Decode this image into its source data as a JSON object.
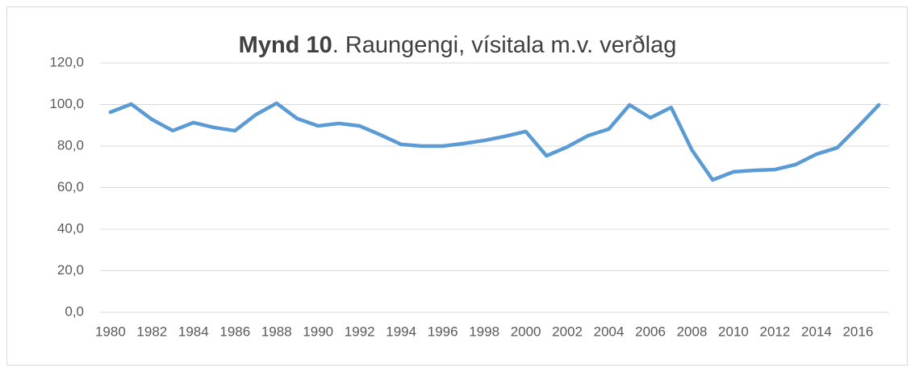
{
  "chart_data": {
    "type": "line",
    "title_bold": "Mynd 10",
    "title": ". Raungengi, vísitala m.v. verðlag",
    "categories": [
      "1980",
      null,
      "1982",
      null,
      "1984",
      null,
      "1986",
      null,
      "1988",
      null,
      "1990",
      null,
      "1992",
      null,
      "1994",
      null,
      "1996",
      null,
      "1998",
      null,
      "2000",
      null,
      "2002",
      null,
      "2004",
      null,
      "2006",
      null,
      "2008",
      null,
      "2010",
      null,
      "2012",
      null,
      "2014",
      null,
      "2016",
      null
    ],
    "series": [
      {
        "color": "#5b9bd5",
        "values": [
          96.3,
          100.2,
          92.8,
          87.4,
          91.3,
          88.9,
          87.4,
          95.1,
          100.6,
          93.2,
          89.7,
          90.9,
          89.7,
          85.4,
          80.8,
          80.0,
          80.0,
          81.2,
          82.7,
          84.7,
          87.0,
          75.3,
          79.6,
          85.0,
          88.2,
          99.8,
          93.6,
          98.6,
          78.1,
          63.7,
          67.6,
          68.3,
          68.7,
          71.1,
          76.1,
          79.2,
          89.3,
          99.8
        ]
      }
    ],
    "ylim": [
      0,
      120
    ],
    "yticks": [
      {
        "value": 0,
        "label": "0,0"
      },
      {
        "value": 20,
        "label": "20,0"
      },
      {
        "value": 40,
        "label": "40,0"
      },
      {
        "value": 60,
        "label": "60,0"
      },
      {
        "value": 80,
        "label": "80,0"
      },
      {
        "value": 100,
        "label": "100,0"
      },
      {
        "value": 120,
        "label": "120,0"
      }
    ],
    "grid": true
  }
}
